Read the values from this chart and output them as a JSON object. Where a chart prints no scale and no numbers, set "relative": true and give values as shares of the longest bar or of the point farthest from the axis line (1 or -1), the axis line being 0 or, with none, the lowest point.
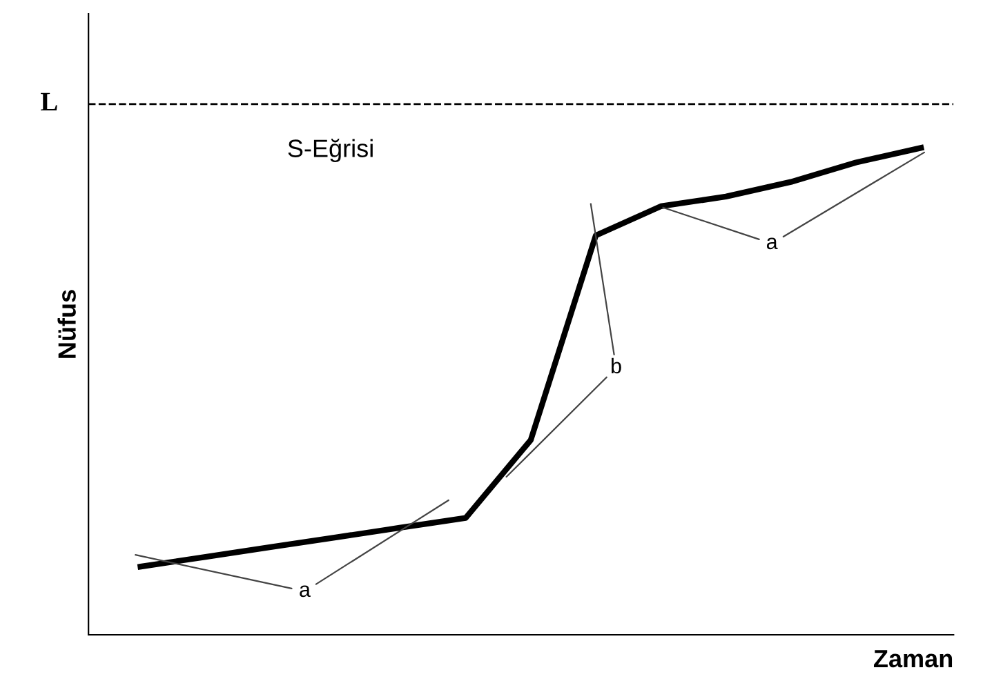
{
  "chart_data": {
    "type": "line",
    "relative": true,
    "xlabel": "Zaman",
    "ylabel": "Nüfus",
    "categories": [
      null,
      null,
      null,
      null,
      null,
      null,
      null,
      null,
      null,
      null,
      null,
      null,
      null
    ],
    "series": [
      {
        "color": "#000000",
        "values": [
          0.14,
          0.16,
          0.18,
          0.2,
          0.22,
          0.24,
          0.4,
          0.82,
          0.88,
          0.9,
          0.93,
          0.97,
          1.0
        ]
      }
    ],
    "ref_lines": [
      {
        "axis": "y",
        "value": 1.09,
        "label": "L",
        "color": "#000000",
        "line_style": "dashed"
      }
    ],
    "annotations": [
      "S-Eğrisi",
      "a",
      "b",
      "a"
    ],
    "grid": false,
    "legend": false,
    "marker": "none",
    "line_style": "solid"
  }
}
